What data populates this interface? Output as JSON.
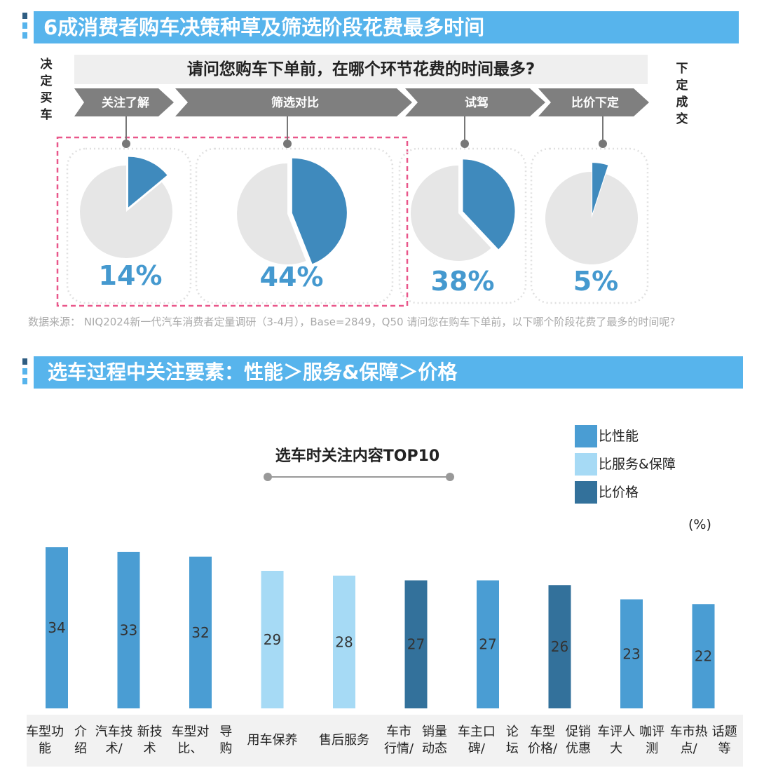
{
  "section1": {
    "title": "6成消费者购车决策种草及筛选阶段花费最多时间",
    "left_side": [
      "决",
      "定",
      "买",
      "车"
    ],
    "right_side": [
      "下",
      "定",
      "成",
      "交"
    ],
    "question": "请问您购车下单前，在哪个环节花费的时间最多?",
    "source": "数据来源： NIQ2024新一代汽车消费者定量调研（3-4月），Base=2849，Q50 请问您在购车下单前，以下哪个阶段花费了最多的时间呢?"
  },
  "section2": {
    "title": "选车过程中关注要素：性能＞服务&保障＞价格"
  },
  "colors": {
    "banner": "#57b4ec",
    "pie_fill": "#3f8abd",
    "pie_rest": "#e6e6e6",
    "highlight_border": "#e9578a",
    "performance": "#4a9dd3",
    "service": "#a6daf5",
    "price": "#33719b",
    "arrow": "#7f7f7f"
  },
  "chart_data": [
    {
      "type": "pie",
      "title": "请问您购车下单前，在哪个环节花费的时间最多?",
      "categories": [
        "关注了解",
        "筛选对比",
        "试驾",
        "比价下定"
      ],
      "values": [
        14,
        44,
        38,
        5
      ],
      "labels": [
        "14%",
        "44%",
        "38%",
        "5%"
      ],
      "highlighted": [
        "关注了解",
        "筛选对比"
      ]
    },
    {
      "type": "bar",
      "title": "选车时关注内容TOP10",
      "unit": "(%)",
      "categories": [
        "车型功能介绍",
        "汽车技术/新技术",
        "车型对比、导购",
        "用车保养",
        "售后服务",
        "车市行情/销量动态",
        "车主口碑/论坛",
        "车型价格/促销优惠",
        "车评人大咖评测",
        "车市热点/话题等"
      ],
      "category_lines": [
        [
          "车型功能",
          "介绍"
        ],
        [
          "汽车技术/",
          "新技术"
        ],
        [
          "车型对比、",
          "导购"
        ],
        [
          "用车保养"
        ],
        [
          "售后服务"
        ],
        [
          "车市行情/",
          "销量动态"
        ],
        [
          "车主口碑/",
          "论坛"
        ],
        [
          "车型价格/",
          "促销优惠"
        ],
        [
          "车评人大",
          "咖评测"
        ],
        [
          "车市热点/",
          "话题等"
        ]
      ],
      "values": [
        34,
        33,
        32,
        29,
        28,
        27,
        27,
        26,
        23,
        22
      ],
      "groups": [
        "比性能",
        "比性能",
        "比性能",
        "比服务&保障",
        "比服务&保障",
        "比价格",
        "比性能",
        "比价格",
        "比性能",
        "比性能"
      ],
      "legend": [
        {
          "name": "比性能",
          "color": "#4a9dd3"
        },
        {
          "name": "比服务&保障",
          "color": "#a6daf5"
        },
        {
          "name": "比价格",
          "color": "#33719b"
        }
      ],
      "legend_position": "top-right",
      "grid": false
    }
  ]
}
